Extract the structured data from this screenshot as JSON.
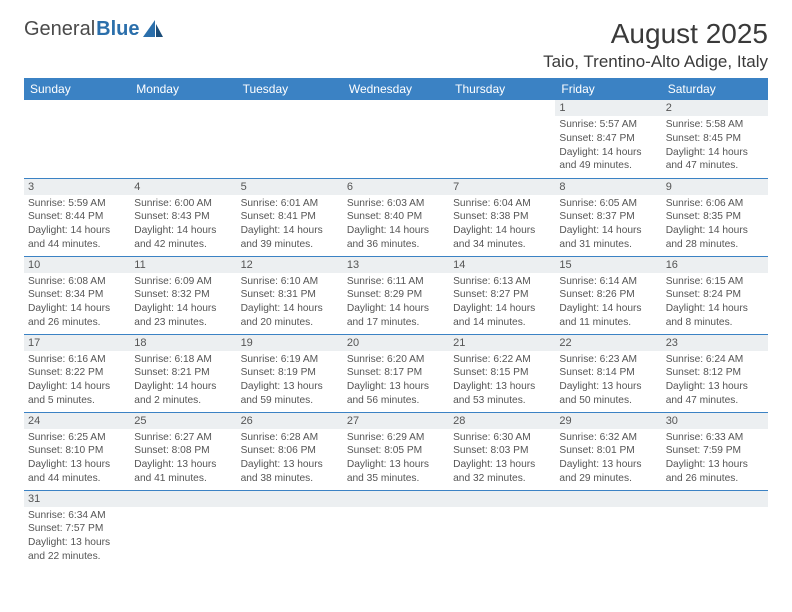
{
  "logo": {
    "text1": "General",
    "text2": "Blue"
  },
  "title": "August 2025",
  "location": "Taio, Trentino-Alto Adige, Italy",
  "colors": {
    "header_bg": "#3b82c4",
    "header_fg": "#ffffff",
    "daynum_bg": "#eceff1",
    "text": "#555555",
    "rule": "#3b82c4",
    "logo_blue": "#2b6fab",
    "logo_gray": "#4a4a4a"
  },
  "daysOfWeek": [
    "Sunday",
    "Monday",
    "Tuesday",
    "Wednesday",
    "Thursday",
    "Friday",
    "Saturday"
  ],
  "weeks": [
    [
      null,
      null,
      null,
      null,
      null,
      {
        "n": "1",
        "sr": "5:57 AM",
        "ss": "8:47 PM",
        "dl": "14 hours and 49 minutes."
      },
      {
        "n": "2",
        "sr": "5:58 AM",
        "ss": "8:45 PM",
        "dl": "14 hours and 47 minutes."
      }
    ],
    [
      {
        "n": "3",
        "sr": "5:59 AM",
        "ss": "8:44 PM",
        "dl": "14 hours and 44 minutes."
      },
      {
        "n": "4",
        "sr": "6:00 AM",
        "ss": "8:43 PM",
        "dl": "14 hours and 42 minutes."
      },
      {
        "n": "5",
        "sr": "6:01 AM",
        "ss": "8:41 PM",
        "dl": "14 hours and 39 minutes."
      },
      {
        "n": "6",
        "sr": "6:03 AM",
        "ss": "8:40 PM",
        "dl": "14 hours and 36 minutes."
      },
      {
        "n": "7",
        "sr": "6:04 AM",
        "ss": "8:38 PM",
        "dl": "14 hours and 34 minutes."
      },
      {
        "n": "8",
        "sr": "6:05 AM",
        "ss": "8:37 PM",
        "dl": "14 hours and 31 minutes."
      },
      {
        "n": "9",
        "sr": "6:06 AM",
        "ss": "8:35 PM",
        "dl": "14 hours and 28 minutes."
      }
    ],
    [
      {
        "n": "10",
        "sr": "6:08 AM",
        "ss": "8:34 PM",
        "dl": "14 hours and 26 minutes."
      },
      {
        "n": "11",
        "sr": "6:09 AM",
        "ss": "8:32 PM",
        "dl": "14 hours and 23 minutes."
      },
      {
        "n": "12",
        "sr": "6:10 AM",
        "ss": "8:31 PM",
        "dl": "14 hours and 20 minutes."
      },
      {
        "n": "13",
        "sr": "6:11 AM",
        "ss": "8:29 PM",
        "dl": "14 hours and 17 minutes."
      },
      {
        "n": "14",
        "sr": "6:13 AM",
        "ss": "8:27 PM",
        "dl": "14 hours and 14 minutes."
      },
      {
        "n": "15",
        "sr": "6:14 AM",
        "ss": "8:26 PM",
        "dl": "14 hours and 11 minutes."
      },
      {
        "n": "16",
        "sr": "6:15 AM",
        "ss": "8:24 PM",
        "dl": "14 hours and 8 minutes."
      }
    ],
    [
      {
        "n": "17",
        "sr": "6:16 AM",
        "ss": "8:22 PM",
        "dl": "14 hours and 5 minutes."
      },
      {
        "n": "18",
        "sr": "6:18 AM",
        "ss": "8:21 PM",
        "dl": "14 hours and 2 minutes."
      },
      {
        "n": "19",
        "sr": "6:19 AM",
        "ss": "8:19 PM",
        "dl": "13 hours and 59 minutes."
      },
      {
        "n": "20",
        "sr": "6:20 AM",
        "ss": "8:17 PM",
        "dl": "13 hours and 56 minutes."
      },
      {
        "n": "21",
        "sr": "6:22 AM",
        "ss": "8:15 PM",
        "dl": "13 hours and 53 minutes."
      },
      {
        "n": "22",
        "sr": "6:23 AM",
        "ss": "8:14 PM",
        "dl": "13 hours and 50 minutes."
      },
      {
        "n": "23",
        "sr": "6:24 AM",
        "ss": "8:12 PM",
        "dl": "13 hours and 47 minutes."
      }
    ],
    [
      {
        "n": "24",
        "sr": "6:25 AM",
        "ss": "8:10 PM",
        "dl": "13 hours and 44 minutes."
      },
      {
        "n": "25",
        "sr": "6:27 AM",
        "ss": "8:08 PM",
        "dl": "13 hours and 41 minutes."
      },
      {
        "n": "26",
        "sr": "6:28 AM",
        "ss": "8:06 PM",
        "dl": "13 hours and 38 minutes."
      },
      {
        "n": "27",
        "sr": "6:29 AM",
        "ss": "8:05 PM",
        "dl": "13 hours and 35 minutes."
      },
      {
        "n": "28",
        "sr": "6:30 AM",
        "ss": "8:03 PM",
        "dl": "13 hours and 32 minutes."
      },
      {
        "n": "29",
        "sr": "6:32 AM",
        "ss": "8:01 PM",
        "dl": "13 hours and 29 minutes."
      },
      {
        "n": "30",
        "sr": "6:33 AM",
        "ss": "7:59 PM",
        "dl": "13 hours and 26 minutes."
      }
    ],
    [
      {
        "n": "31",
        "sr": "6:34 AM",
        "ss": "7:57 PM",
        "dl": "13 hours and 22 minutes."
      },
      null,
      null,
      null,
      null,
      null,
      null
    ]
  ],
  "labels": {
    "sunrise": "Sunrise:",
    "sunset": "Sunset:",
    "daylight": "Daylight:"
  }
}
